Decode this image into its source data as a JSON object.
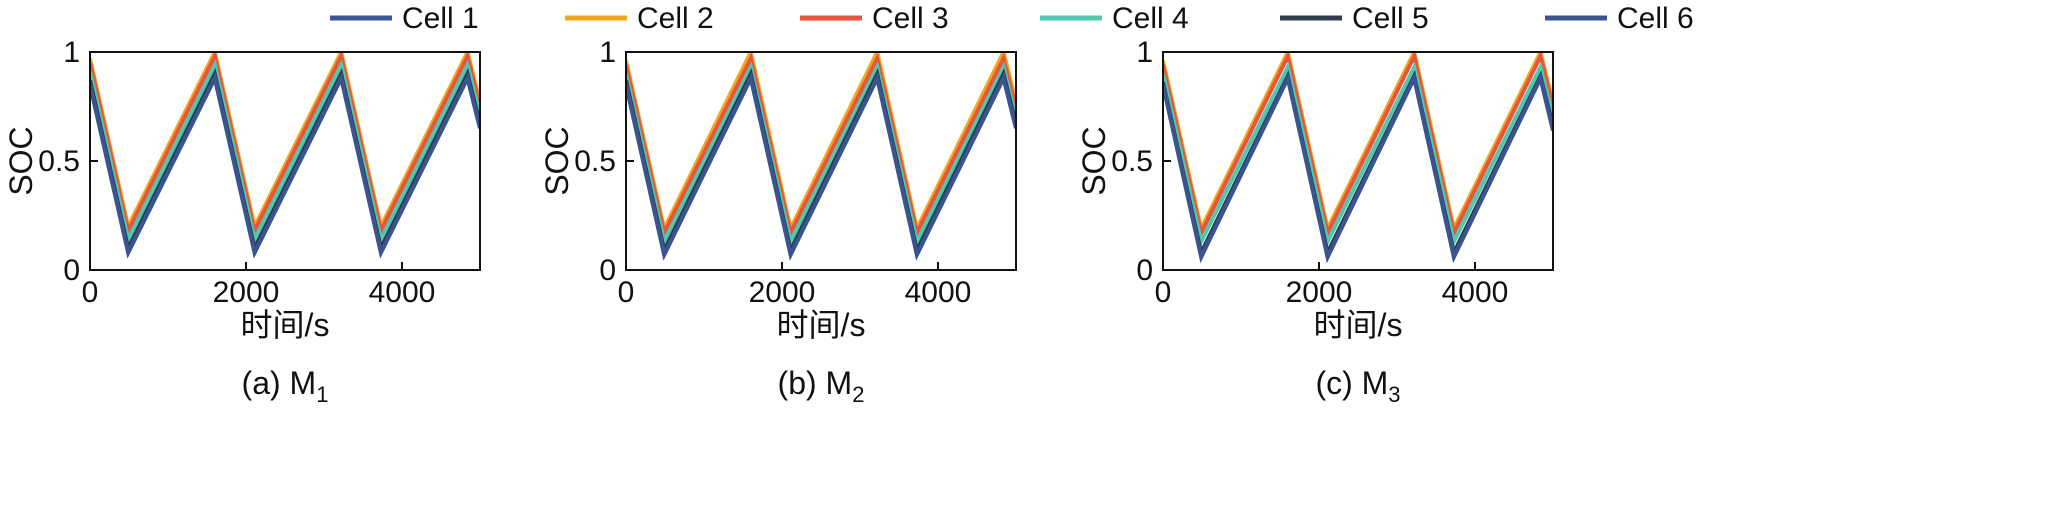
{
  "legend": {
    "entries": [
      {
        "name": "Cell 1",
        "color": "#3b5998"
      },
      {
        "name": "Cell 2",
        "color": "#f2a71b"
      },
      {
        "name": "Cell 3",
        "color": "#e8553e"
      },
      {
        "name": "Cell 4",
        "color": "#4ec9b0"
      },
      {
        "name": "Cell 5",
        "color": "#2f3c4f"
      },
      {
        "name": "Cell 6",
        "color": "#3a5491"
      }
    ],
    "placement": "top-center"
  },
  "chart_data": [
    {
      "type": "line",
      "caption": "(a) M",
      "caption_sub": "1",
      "xlabel": "时间/s",
      "ylabel": "SOC",
      "xlim": [
        0,
        5000
      ],
      "ylim": [
        0,
        1
      ],
      "xticks": [
        "0",
        "2000",
        "4000"
      ],
      "yticks": [
        "0",
        "0.5",
        "1"
      ],
      "grid": false,
      "x": [
        0,
        490,
        1600,
        2110,
        3220,
        3730,
        4840,
        5000
      ],
      "series": [
        {
          "name": "Cell 1",
          "values": [
            0.85,
            0.08,
            0.88,
            0.08,
            0.88,
            0.08,
            0.88,
            0.65
          ]
        },
        {
          "name": "Cell 2",
          "values": [
            0.97,
            0.2,
            1.0,
            0.2,
            1.0,
            0.2,
            1.0,
            0.77
          ]
        },
        {
          "name": "Cell 3",
          "values": [
            0.95,
            0.18,
            0.98,
            0.18,
            0.98,
            0.18,
            0.98,
            0.75
          ]
        },
        {
          "name": "Cell 4",
          "values": [
            0.91,
            0.14,
            0.94,
            0.14,
            0.94,
            0.14,
            0.94,
            0.71
          ]
        },
        {
          "name": "Cell 5",
          "values": [
            0.87,
            0.1,
            0.9,
            0.1,
            0.9,
            0.1,
            0.9,
            0.67
          ]
        },
        {
          "name": "Cell 6",
          "values": [
            0.85,
            0.08,
            0.88,
            0.08,
            0.88,
            0.08,
            0.88,
            0.65
          ]
        }
      ]
    },
    {
      "type": "line",
      "caption": "(b) M",
      "caption_sub": "2",
      "xlabel": "时间/s",
      "ylabel": "SOC",
      "xlim": [
        0,
        5000
      ],
      "ylim": [
        0,
        1
      ],
      "xticks": [
        "0",
        "2000",
        "4000"
      ],
      "yticks": [
        "0",
        "0.5",
        "1"
      ],
      "grid": false,
      "x": [
        0,
        490,
        1600,
        2110,
        3220,
        3730,
        4840,
        5000
      ],
      "series": [
        {
          "name": "Cell 1",
          "values": [
            0.85,
            0.07,
            0.88,
            0.07,
            0.88,
            0.07,
            0.88,
            0.65
          ]
        },
        {
          "name": "Cell 2",
          "values": [
            0.96,
            0.19,
            1.0,
            0.19,
            1.0,
            0.19,
            1.0,
            0.77
          ]
        },
        {
          "name": "Cell 3",
          "values": [
            0.94,
            0.17,
            0.97,
            0.17,
            0.97,
            0.17,
            0.97,
            0.74
          ]
        },
        {
          "name": "Cell 4",
          "values": [
            0.9,
            0.13,
            0.93,
            0.13,
            0.93,
            0.13,
            0.93,
            0.7
          ]
        },
        {
          "name": "Cell 5",
          "values": [
            0.87,
            0.09,
            0.9,
            0.09,
            0.9,
            0.09,
            0.9,
            0.67
          ]
        },
        {
          "name": "Cell 6",
          "values": [
            0.85,
            0.07,
            0.88,
            0.07,
            0.88,
            0.07,
            0.88,
            0.65
          ]
        }
      ]
    },
    {
      "type": "line",
      "caption": "(c) M",
      "caption_sub": "3",
      "xlabel": "时间/s",
      "ylabel": "SOC",
      "xlim": [
        0,
        5000
      ],
      "ylim": [
        0,
        1
      ],
      "xticks": [
        "0",
        "2000",
        "4000"
      ],
      "yticks": [
        "0",
        "0.5",
        "1"
      ],
      "grid": false,
      "x": [
        0,
        490,
        1600,
        2110,
        3220,
        3730,
        4840,
        5000
      ],
      "series": [
        {
          "name": "Cell 1",
          "values": [
            0.85,
            0.06,
            0.88,
            0.06,
            0.88,
            0.06,
            0.88,
            0.64
          ]
        },
        {
          "name": "Cell 2",
          "values": [
            0.96,
            0.19,
            1.0,
            0.19,
            1.0,
            0.19,
            1.0,
            0.77
          ]
        },
        {
          "name": "Cell 3",
          "values": [
            0.94,
            0.17,
            0.98,
            0.17,
            0.98,
            0.17,
            0.98,
            0.75
          ]
        },
        {
          "name": "Cell 4",
          "values": [
            0.9,
            0.13,
            0.93,
            0.13,
            0.93,
            0.13,
            0.93,
            0.7
          ]
        },
        {
          "name": "Cell 5",
          "values": [
            0.86,
            0.08,
            0.89,
            0.08,
            0.89,
            0.08,
            0.89,
            0.66
          ]
        },
        {
          "name": "Cell 6",
          "values": [
            0.85,
            0.06,
            0.88,
            0.06,
            0.88,
            0.06,
            0.88,
            0.64
          ]
        }
      ]
    }
  ]
}
